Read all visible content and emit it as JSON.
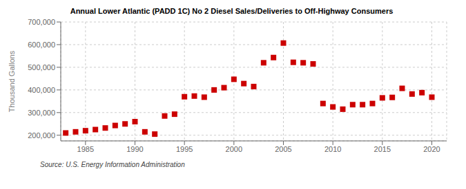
{
  "chart_data": {
    "type": "scatter",
    "title": "Annual Lower Atlantic (PADD 1C) No 2 Diesel Sales/Deliveries to Off-Highway Consumers",
    "ylabel": "Thousand Gallons",
    "annotation": "Source: U.S. Energy Information Administration",
    "x": [
      1983,
      1984,
      1985,
      1986,
      1987,
      1988,
      1989,
      1990,
      1991,
      1992,
      1993,
      1994,
      1995,
      1996,
      1997,
      1998,
      1999,
      2000,
      2001,
      2002,
      2003,
      2004,
      2005,
      2006,
      2007,
      2008,
      2009,
      2010,
      2011,
      2012,
      2013,
      2014,
      2015,
      2016,
      2017,
      2018,
      2019,
      2020
    ],
    "values": [
      210000,
      215000,
      220000,
      225000,
      232000,
      243000,
      250000,
      260000,
      215000,
      205000,
      285000,
      293000,
      370000,
      373000,
      368000,
      400000,
      410000,
      447000,
      428000,
      415000,
      520000,
      543000,
      607000,
      522000,
      520000,
      515000,
      340000,
      325000,
      315000,
      335000,
      335000,
      340000,
      365000,
      367000,
      407000,
      382000,
      388000,
      368000
    ],
    "color": "#cc0000",
    "marker": "square",
    "xlim": [
      1982.5,
      2021.5
    ],
    "ylim": [
      175000,
      700000
    ],
    "xticks": [
      1985,
      1990,
      1995,
      2000,
      2005,
      2010,
      2015,
      2020
    ],
    "yticks": [
      {
        "value": 200000,
        "label": "200,000"
      },
      {
        "value": 300000,
        "label": "300,000"
      },
      {
        "value": 400000,
        "label": "400,000"
      },
      {
        "value": 500000,
        "label": "500,000"
      },
      {
        "value": 600000,
        "label": "600,000"
      },
      {
        "value": 700000,
        "label": "700,000"
      }
    ],
    "grid": true
  }
}
